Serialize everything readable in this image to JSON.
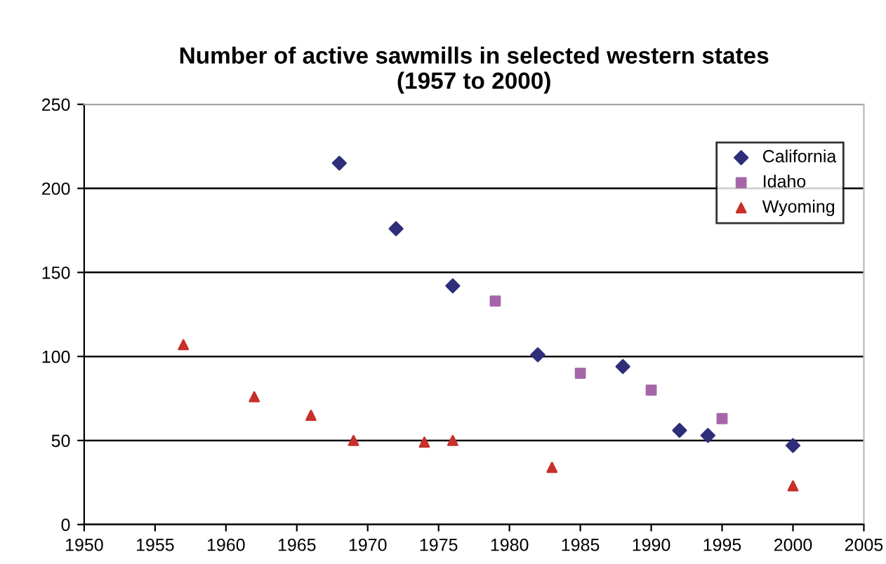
{
  "chart_data": {
    "type": "scatter",
    "title": "Number of active sawmills in selected western states\n(1957 to 2000)",
    "xlim": [
      1950,
      2005
    ],
    "xticks": [
      1950,
      1955,
      1960,
      1965,
      1970,
      1975,
      1980,
      1985,
      1990,
      1995,
      2000,
      2005
    ],
    "ylim": [
      0,
      250
    ],
    "yticks": [
      0,
      50,
      100,
      150,
      200,
      250
    ],
    "grid": "y",
    "legend": "top right",
    "series": [
      {
        "name": "California",
        "color": "#2e2e7a",
        "marker": "diamond",
        "x": [
          1968,
          1972,
          1976,
          1982,
          1988,
          1992,
          1994,
          2000
        ],
        "values": [
          215,
          176,
          142,
          101,
          94,
          56,
          53,
          47
        ]
      },
      {
        "name": "Idaho",
        "color": "#a566a8",
        "marker": "square",
        "x": [
          1979,
          1985,
          1990,
          1995
        ],
        "values": [
          133,
          90,
          80,
          63
        ]
      },
      {
        "name": "Wyoming",
        "color": "#c8302a",
        "marker": "triangle",
        "x": [
          1957,
          1962,
          1966,
          1969,
          1974,
          1976,
          1983,
          2000
        ],
        "values": [
          107,
          76,
          65,
          50,
          49,
          50,
          34,
          23
        ]
      }
    ]
  }
}
